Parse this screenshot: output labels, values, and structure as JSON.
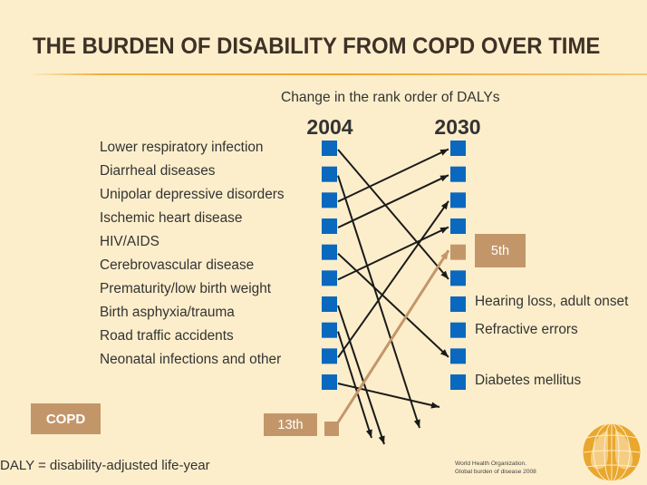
{
  "slide": {
    "title": "THE BURDEN OF DISABILITY FROM COPD OVER TIME",
    "footnote": "DALY = disability-adjusted life-year",
    "reference": [
      "World Health Organization.",
      "Global burden of disease 2008"
    ],
    "logo_icon": "who-globe-lungs-icon"
  },
  "colors": {
    "background": "#FDEECB",
    "title": "#3E3127",
    "accent_rule": "#EFA52C",
    "square": "#0A68BE",
    "copd_highlight": "#C3966A",
    "arrow": "#1A1A1A",
    "text": "#333333"
  },
  "chart_data": {
    "type": "line",
    "title": "Change in the rank order of DALYs",
    "x": [
      "2004",
      "2030"
    ],
    "xlabel": "",
    "ylabel": "",
    "series": [
      {
        "name": "Lower respiratory infection",
        "values": [
          1,
          6
        ]
      },
      {
        "name": "Diarrheal diseases",
        "values": [
          2,
          ">10"
        ]
      },
      {
        "name": "Unipolar depressive disorders",
        "values": [
          3,
          1
        ]
      },
      {
        "name": "Ischemic heart disease",
        "values": [
          4,
          2
        ]
      },
      {
        "name": "HIV/AIDS",
        "values": [
          5,
          9
        ]
      },
      {
        "name": "Cerebrovascular disease",
        "values": [
          6,
          4
        ]
      },
      {
        "name": "Prematurity/low birth weight",
        "values": [
          7,
          ">10"
        ]
      },
      {
        "name": "Birth asphyxia/trauma",
        "values": [
          8,
          ">10"
        ]
      },
      {
        "name": "Road traffic accidents",
        "values": [
          9,
          3
        ]
      },
      {
        "name": "Neonatal infections and other",
        "values": [
          10,
          ">10"
        ]
      }
    ],
    "highlight": {
      "name": "COPD",
      "values": [
        13,
        5
      ],
      "label_2004": "13th",
      "label_2030": "5th"
    },
    "right_labels": [
      {
        "rank": 7,
        "name": "Hearing loss, adult onset"
      },
      {
        "rank": 8,
        "name": "Refractive errors"
      },
      {
        "rank": 10,
        "name": "Diabetes mellitus"
      }
    ]
  }
}
